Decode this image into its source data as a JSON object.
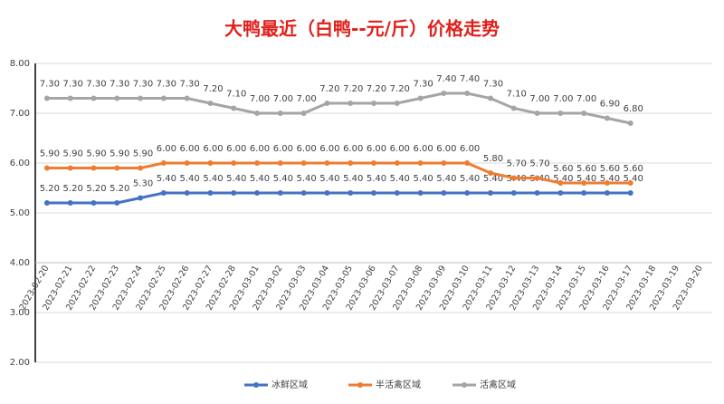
{
  "chart_data": {
    "type": "line",
    "title": "大鸭最近（白鸭--元/斤）价格走势",
    "categories": [
      "2023-02-20",
      "2023-02-21",
      "2023-02-22",
      "2023-02-23",
      "2023-02-24",
      "2023-02-25",
      "2023-02-26",
      "2023-02-27",
      "2023-02-28",
      "2023-03-01",
      "2023-03-02",
      "2023-03-03",
      "2023-03-04",
      "2023-03-05",
      "2023-03-06",
      "2023-03-07",
      "2023-03-08",
      "2023-03-09",
      "2023-03-10",
      "2023-03-11",
      "2023-03-12",
      "2023-03-13",
      "2023-03-14",
      "2023-03-15",
      "2023-03-16",
      "2023-03-17",
      "2023-03-18",
      "2023-03-19",
      "2023-03-20"
    ],
    "ylim": [
      2,
      8
    ],
    "yticks": [
      {
        "value": 2,
        "label": "2.00"
      },
      {
        "value": 3,
        "label": "3.00"
      },
      {
        "value": 4,
        "label": "4.00"
      },
      {
        "value": 5,
        "label": "5.00"
      },
      {
        "value": 6,
        "label": "6.00"
      },
      {
        "value": 7,
        "label": "7.00"
      },
      {
        "value": 8,
        "label": "8.00"
      }
    ],
    "xaxis_cross": 4,
    "grid": true,
    "legend": "bottom",
    "series": [
      {
        "name": "冰鲜区域",
        "color": "#4472c4",
        "values": [
          5.2,
          5.2,
          5.2,
          5.2,
          5.3,
          5.4,
          5.4,
          5.4,
          5.4,
          5.4,
          5.4,
          5.4,
          5.4,
          5.4,
          5.4,
          5.4,
          5.4,
          5.4,
          5.4,
          5.4,
          5.4,
          5.4,
          5.4,
          5.4,
          5.4,
          5.4,
          null,
          null,
          null
        ],
        "value_labels": [
          "5.20",
          "5.20",
          "5.20",
          "5.20",
          "5.30",
          "5.40",
          "5.40",
          "5.40",
          "5.40",
          "5.40",
          "5.40",
          "5.40",
          "5.40",
          "5.40",
          "5.40",
          "5.40",
          "5.40",
          "5.40",
          "5.40",
          "5.40",
          "5.40",
          "5.40",
          "5.40",
          "5.40",
          "5.40",
          "5.40",
          null,
          null,
          null
        ]
      },
      {
        "name": "半活禽区域",
        "color": "#ed7d31",
        "values": [
          5.9,
          5.9,
          5.9,
          5.9,
          5.9,
          6,
          6,
          6,
          6,
          6,
          6,
          6,
          6,
          6,
          6,
          6,
          6,
          6,
          6,
          5.8,
          5.7,
          5.7,
          5.6,
          5.6,
          5.6,
          5.6,
          null,
          null,
          null
        ],
        "value_labels": [
          "5.90",
          "5.90",
          "5.90",
          "5.90",
          "5.90",
          "6.00",
          "6.00",
          "6.00",
          "6.00",
          "6.00",
          "6.00",
          "6.00",
          "6.00",
          "6.00",
          "6.00",
          "6.00",
          "6.00",
          "6.00",
          "6.00",
          "5.80",
          "5.70",
          "5.70",
          "5.60",
          "5.60",
          "5.60",
          "5.60",
          null,
          null,
          null
        ]
      },
      {
        "name": "活禽区域",
        "color": "#a5a5a5",
        "values": [
          7.3,
          7.3,
          7.3,
          7.3,
          7.3,
          7.3,
          7.3,
          7.2,
          7.1,
          7,
          7,
          7,
          7.2,
          7.2,
          7.2,
          7.2,
          7.3,
          7.4,
          7.4,
          7.3,
          7.1,
          7,
          7,
          7,
          6.9,
          6.8,
          null,
          null,
          null
        ],
        "value_labels": [
          "7.30",
          "7.30",
          "7.30",
          "7.30",
          "7.30",
          "7.30",
          "7.30",
          "7.20",
          "7.10",
          "7.00",
          "7.00",
          "7.00",
          "7.20",
          "7.20",
          "7.20",
          "7.20",
          "7.30",
          "7.40",
          "7.40",
          "7.30",
          "7.10",
          "7.00",
          "7.00",
          "7.00",
          "6.90",
          "6.80",
          null,
          null,
          null
        ]
      }
    ]
  }
}
